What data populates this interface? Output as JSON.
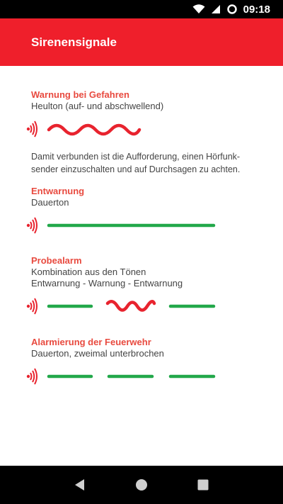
{
  "status_bar": {
    "time": "09:18"
  },
  "app_bar": {
    "title": "Sirenensignale"
  },
  "sections": [
    {
      "title": "Warnung bei Gefahren",
      "subtitle": "Heulton (auf- und abschwellend)",
      "description": "Damit verbunden ist die Aufforderung, einen Hörfunk-sender einzuschalten und auf Durchsagen zu achten."
    },
    {
      "title": "Entwarnung",
      "subtitle": "Dauerton"
    },
    {
      "title": "Probealarm",
      "subtitle": "Kombination aus den Tönen",
      "subtitle2": "Entwarnung - Warnung - Entwarnung"
    },
    {
      "title": "Alarmierung der Feuerwehr",
      "subtitle": "Dauerton, zweimal unterbrochen"
    }
  ],
  "colors": {
    "primary": "#ef1f2b",
    "title": "#e84a3f",
    "wave": "#e8232e",
    "steady": "#22a84a"
  }
}
